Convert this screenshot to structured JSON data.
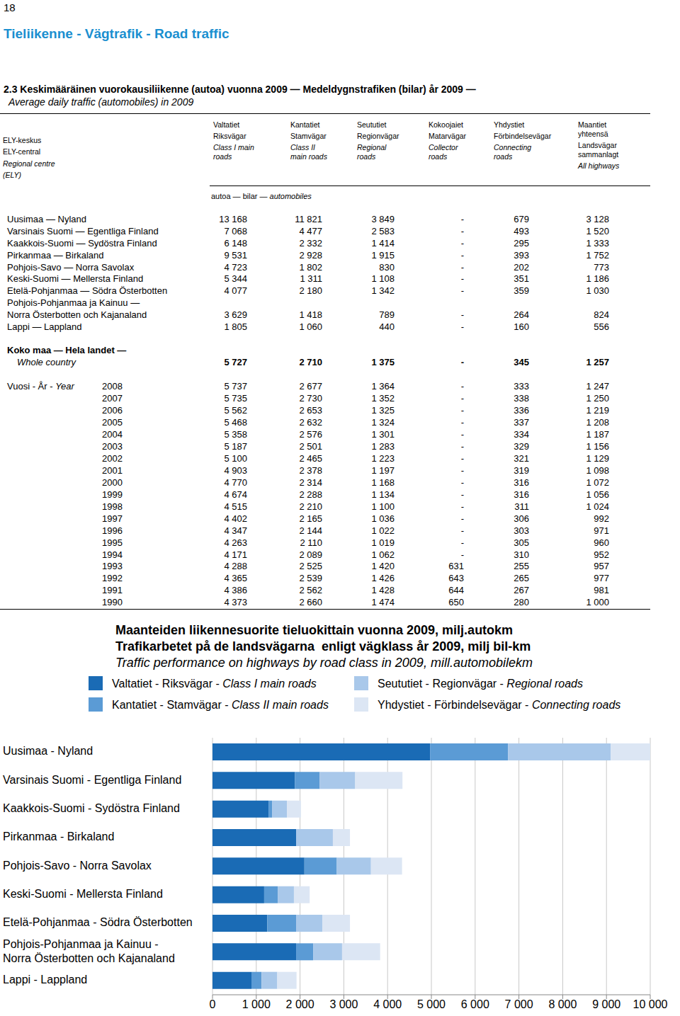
{
  "page_number": "18",
  "header": "Tieliikenne - Vägtrafik - Road traffic",
  "table": {
    "title": [
      "2.3 Keskimääräinen vuorokausiliikenne (autoa) vuonna 2009 — Medeldygnstrafiken (bilar) år 2009 —",
      "Average daily traffic (automobiles) in 2009"
    ],
    "row_header": [
      "ELY-keskus",
      "ELY-central",
      "Regional centre",
      "(ELY)"
    ],
    "columns": [
      {
        "fi": "Valtatiet",
        "sv": "Riksvägar",
        "en": "Class I main roads"
      },
      {
        "fi": "Kantatiet",
        "sv": "Stamvägar",
        "en": "Class II main roads"
      },
      {
        "fi": "Seututiet",
        "sv": "Regionvägar",
        "en": "Regional roads"
      },
      {
        "fi": "Kokoojaiet",
        "sv": "Matarvägar",
        "en": "Collector roads"
      },
      {
        "fi": "Yhdystiet",
        "sv": "Förbindelsevägar",
        "en": "Connecting roads"
      },
      {
        "fi": "Maantiet yhteensä",
        "sv": "Landsvägar sammanlagt",
        "en": "All highways"
      }
    ],
    "unit": [
      "autoa — bilar — ",
      "automobiles"
    ],
    "rows": [
      {
        "label": [
          "Uusimaa — Nyland"
        ],
        "values": [
          "13 168",
          "11 821",
          "3 849",
          "-",
          "679",
          "3 128"
        ]
      },
      {
        "label": [
          "Varsinais Suomi — Egentliga Finland"
        ],
        "values": [
          "7 068",
          "4 477",
          "2 583",
          "-",
          "493",
          "1 520"
        ]
      },
      {
        "label": [
          "Kaakkois-Suomi — Sydöstra Finland"
        ],
        "values": [
          "6 148",
          "2 332",
          "1 414",
          "-",
          "295",
          "1 333"
        ]
      },
      {
        "label": [
          "Pirkanmaa — Birkaland"
        ],
        "values": [
          "9 531",
          "2 928",
          "1 915",
          "-",
          "393",
          "1 752"
        ]
      },
      {
        "label": [
          "Pohjois-Savo — Norra Savolax"
        ],
        "values": [
          "4 723",
          "1 802",
          "830",
          "-",
          "202",
          "773"
        ]
      },
      {
        "label": [
          "Keski-Suomi — Mellersta Finland"
        ],
        "values": [
          "5 344",
          "1 311",
          "1 108",
          "-",
          "351",
          "1 186"
        ]
      },
      {
        "label": [
          "Etelä-Pohjanmaa — Södra Österbotten"
        ],
        "values": [
          "4 077",
          "2 180",
          "1 342",
          "-",
          "359",
          "1 030"
        ]
      },
      {
        "label": [
          "Pohjois-Pohjanmaa ja Kainuu —",
          "Norra Österbotten och Kajanaland"
        ],
        "values": [
          "3 629",
          "1 418",
          "789",
          "-",
          "264",
          "824"
        ]
      },
      {
        "label": [
          "Lappi — Lappland"
        ],
        "values": [
          "1 805",
          "1 060",
          "440",
          "-",
          "160",
          "556"
        ]
      }
    ],
    "total": {
      "label": [
        "Koko maa — Hela landet —",
        "Whole country"
      ],
      "values": [
        "5 727",
        "2 710",
        "1 375",
        "-",
        "345",
        "1 257"
      ]
    },
    "years_label": [
      "Vuosi - År - ",
      "Year"
    ],
    "years": [
      {
        "year": "2008",
        "values": [
          "5 737",
          "2 677",
          "1 364",
          "-",
          "333",
          "1 247"
        ]
      },
      {
        "year": "2007",
        "values": [
          "5 735",
          "2 730",
          "1 352",
          "-",
          "338",
          "1 250"
        ]
      },
      {
        "year": "2006",
        "values": [
          "5 562",
          "2 653",
          "1 325",
          "-",
          "336",
          "1 219"
        ]
      },
      {
        "year": "2005",
        "values": [
          "5 468",
          "2 632",
          "1 324",
          "-",
          "337",
          "1 208"
        ]
      },
      {
        "year": "2004",
        "values": [
          "5 358",
          "2 576",
          "1 301",
          "-",
          "334",
          "1 187"
        ]
      },
      {
        "year": "2003",
        "values": [
          "5 187",
          "2 501",
          "1 283",
          "-",
          "329",
          "1 156"
        ]
      },
      {
        "year": "2002",
        "values": [
          "5 100",
          "2 465",
          "1 223",
          "-",
          "321",
          "1 129"
        ]
      },
      {
        "year": "2001",
        "values": [
          "4 903",
          "2 378",
          "1 197",
          "-",
          "319",
          "1 098"
        ]
      },
      {
        "year": "2000",
        "values": [
          "4 770",
          "2 314",
          "1 168",
          "-",
          "316",
          "1 072"
        ]
      },
      {
        "year": "1999",
        "values": [
          "4 674",
          "2 288",
          "1 134",
          "-",
          "316",
          "1 056"
        ]
      },
      {
        "year": "1998",
        "values": [
          "4 515",
          "2 210",
          "1 100",
          "-",
          "311",
          "1 024"
        ]
      },
      {
        "year": "1997",
        "values": [
          "4 402",
          "2 165",
          "1 036",
          "-",
          "306",
          "992"
        ]
      },
      {
        "year": "1996",
        "values": [
          "4 347",
          "2 144",
          "1 022",
          "-",
          "303",
          "971"
        ]
      },
      {
        "year": "1995",
        "values": [
          "4 263",
          "2 110",
          "1 019",
          "-",
          "305",
          "960"
        ]
      },
      {
        "year": "1994",
        "values": [
          "4 171",
          "2 089",
          "1 062",
          "-",
          "310",
          "952"
        ]
      },
      {
        "year": "1993",
        "values": [
          "4 288",
          "2 525",
          "1 420",
          "631",
          "255",
          "957"
        ]
      },
      {
        "year": "1992",
        "values": [
          "4 365",
          "2 539",
          "1 426",
          "643",
          "265",
          "977"
        ]
      },
      {
        "year": "1991",
        "values": [
          "4 386",
          "2 562",
          "1 428",
          "644",
          "267",
          "981"
        ]
      },
      {
        "year": "1990",
        "values": [
          "4 373",
          "2 660",
          "1 474",
          "650",
          "280",
          "1 000"
        ]
      }
    ]
  },
  "chart_data": {
    "type": "bar",
    "orientation": "horizontal",
    "stacked": true,
    "grid": true,
    "legend": "top",
    "title": [
      "Maanteiden liikennesuorite tieluokittain vuonna 2009, milj.autokm",
      "Trafikarbetet på de landsvägarna  enligt vägklass år 2009, milj bil-km",
      "Traffic performance on highways by road class in 2009, mill.automobilekm"
    ],
    "categories": [
      "Uusimaa - Nyland",
      "Varsinais Suomi - Egentliga Finland",
      "Kaakkois-Suomi - Sydöstra Finland",
      "Pirkanmaa - Birkaland",
      "Pohjois-Savo - Norra Savolax",
      "Keski-Suomi - Mellersta Finland",
      "Etelä-Pohjanmaa - Södra Österbotten",
      "Pohjois-Pohjanmaa ja Kainuu -\nNorra Österbotten och Kajanaland",
      "Lappi - Lappland"
    ],
    "series": [
      {
        "name": "Valtatiet - Riksvägar - Class I main roads",
        "color": "#1a6bb5",
        "values": [
          4970,
          1880,
          1280,
          1910,
          2100,
          1180,
          1250,
          1910,
          890
        ]
      },
      {
        "name": "Kantatiet - Stamvägar - Class II main roads",
        "color": "#5b9bd5",
        "values": [
          1780,
          570,
          80,
          0,
          740,
          310,
          660,
          390,
          230
        ]
      },
      {
        "name": "Seututiet - Regionvägar - Regional roads",
        "color": "#a9c8ea",
        "values": [
          2350,
          810,
          340,
          840,
          780,
          370,
          600,
          660,
          360
        ]
      },
      {
        "name": "Yhdystiet - Förbindelsevägar - Connecting roads",
        "color": "#dce6f4",
        "values": [
          900,
          1080,
          320,
          390,
          710,
          360,
          630,
          870,
          440
        ]
      }
    ],
    "xlim": [
      0,
      10000
    ],
    "xticks": [
      0,
      {
        "value": 1000,
        "label": "1 000"
      },
      {
        "value": 2000,
        "label": "2 000"
      },
      {
        "value": 3000,
        "label": "3 000"
      },
      {
        "value": 4000,
        "label": "4 000"
      },
      {
        "value": 5000,
        "label": "5 000"
      },
      {
        "value": 6000,
        "label": "6 000"
      },
      {
        "value": 7000,
        "label": "7 000"
      },
      {
        "value": 8000,
        "label": "8 000"
      },
      {
        "value": 9000,
        "label": "9 000"
      },
      {
        "value": 10000,
        "label": "10 000"
      }
    ]
  }
}
